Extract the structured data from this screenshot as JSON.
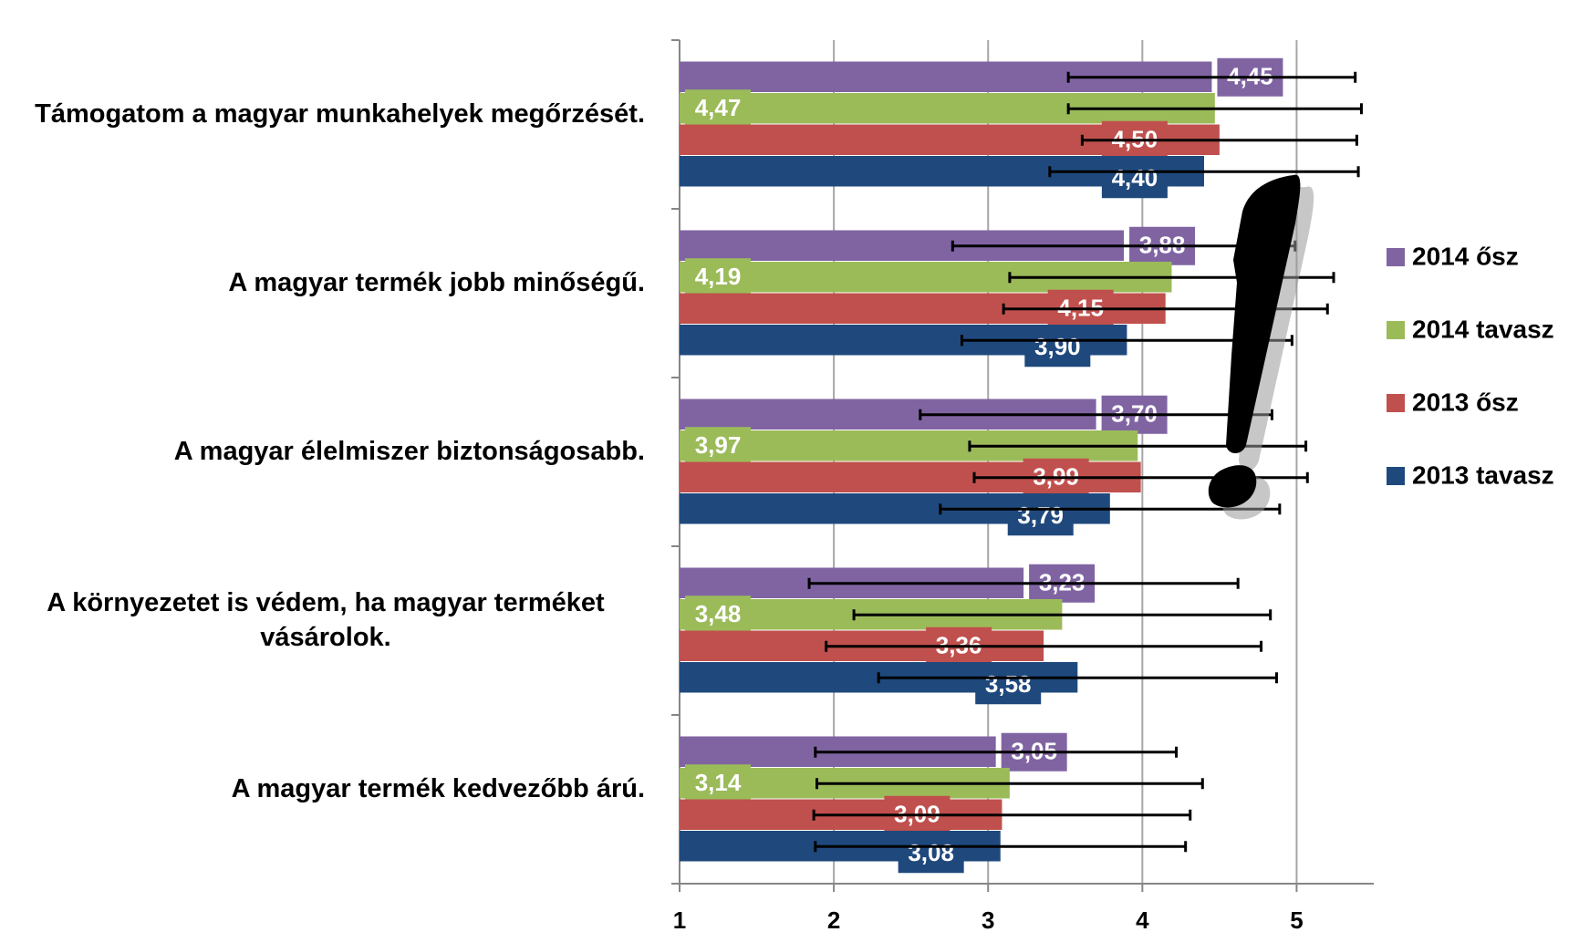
{
  "chart_data": {
    "type": "bar",
    "orientation": "horizontal",
    "categories": [
      "Támogatom a magyar munkahelyek megőrzését.",
      "A magyar termék jobb minőségű.",
      "A magyar élelmiszer biztonságosabb.",
      "A környezetet is védem, ha magyar terméket vásárolok.",
      "A magyar termék kedvezőbb árú."
    ],
    "series": [
      {
        "name": "2014 ősz",
        "color": "#8064a2",
        "values": [
          4.45,
          3.88,
          3.7,
          3.23,
          3.05
        ],
        "value_labels": [
          "4,45",
          "3,88",
          "3,70",
          "3,23",
          "3,05"
        ],
        "errors": [
          0.93,
          1.11,
          1.14,
          1.39,
          1.17
        ]
      },
      {
        "name": "2014 tavasz",
        "color": "#9bbb59",
        "values": [
          4.47,
          4.19,
          3.97,
          3.48,
          3.14
        ],
        "value_labels": [
          "4,47",
          "4,19",
          "3,97",
          "3,48",
          "3,14"
        ],
        "errors": [
          0.95,
          1.05,
          1.09,
          1.35,
          1.25
        ]
      },
      {
        "name": "2013 ősz",
        "color": "#c0504d",
        "values": [
          4.5,
          4.15,
          3.99,
          3.36,
          3.09
        ],
        "value_labels": [
          "4,50",
          "4,15",
          "3,99",
          "3,36",
          "3,09"
        ],
        "errors": [
          0.89,
          1.05,
          1.08,
          1.41,
          1.22
        ]
      },
      {
        "name": "2013 tavasz",
        "color": "#1f497d",
        "values": [
          4.4,
          3.9,
          3.79,
          3.58,
          3.08
        ],
        "value_labels": [
          "4,40",
          "3,90",
          "3,79",
          "3,58",
          "3,08"
        ],
        "errors": [
          1.0,
          1.07,
          1.1,
          1.29,
          1.2
        ]
      }
    ],
    "xlim": [
      1,
      5.5
    ],
    "xticks": [
      1,
      2,
      3,
      4,
      5
    ],
    "grid": true,
    "legend": "right"
  }
}
